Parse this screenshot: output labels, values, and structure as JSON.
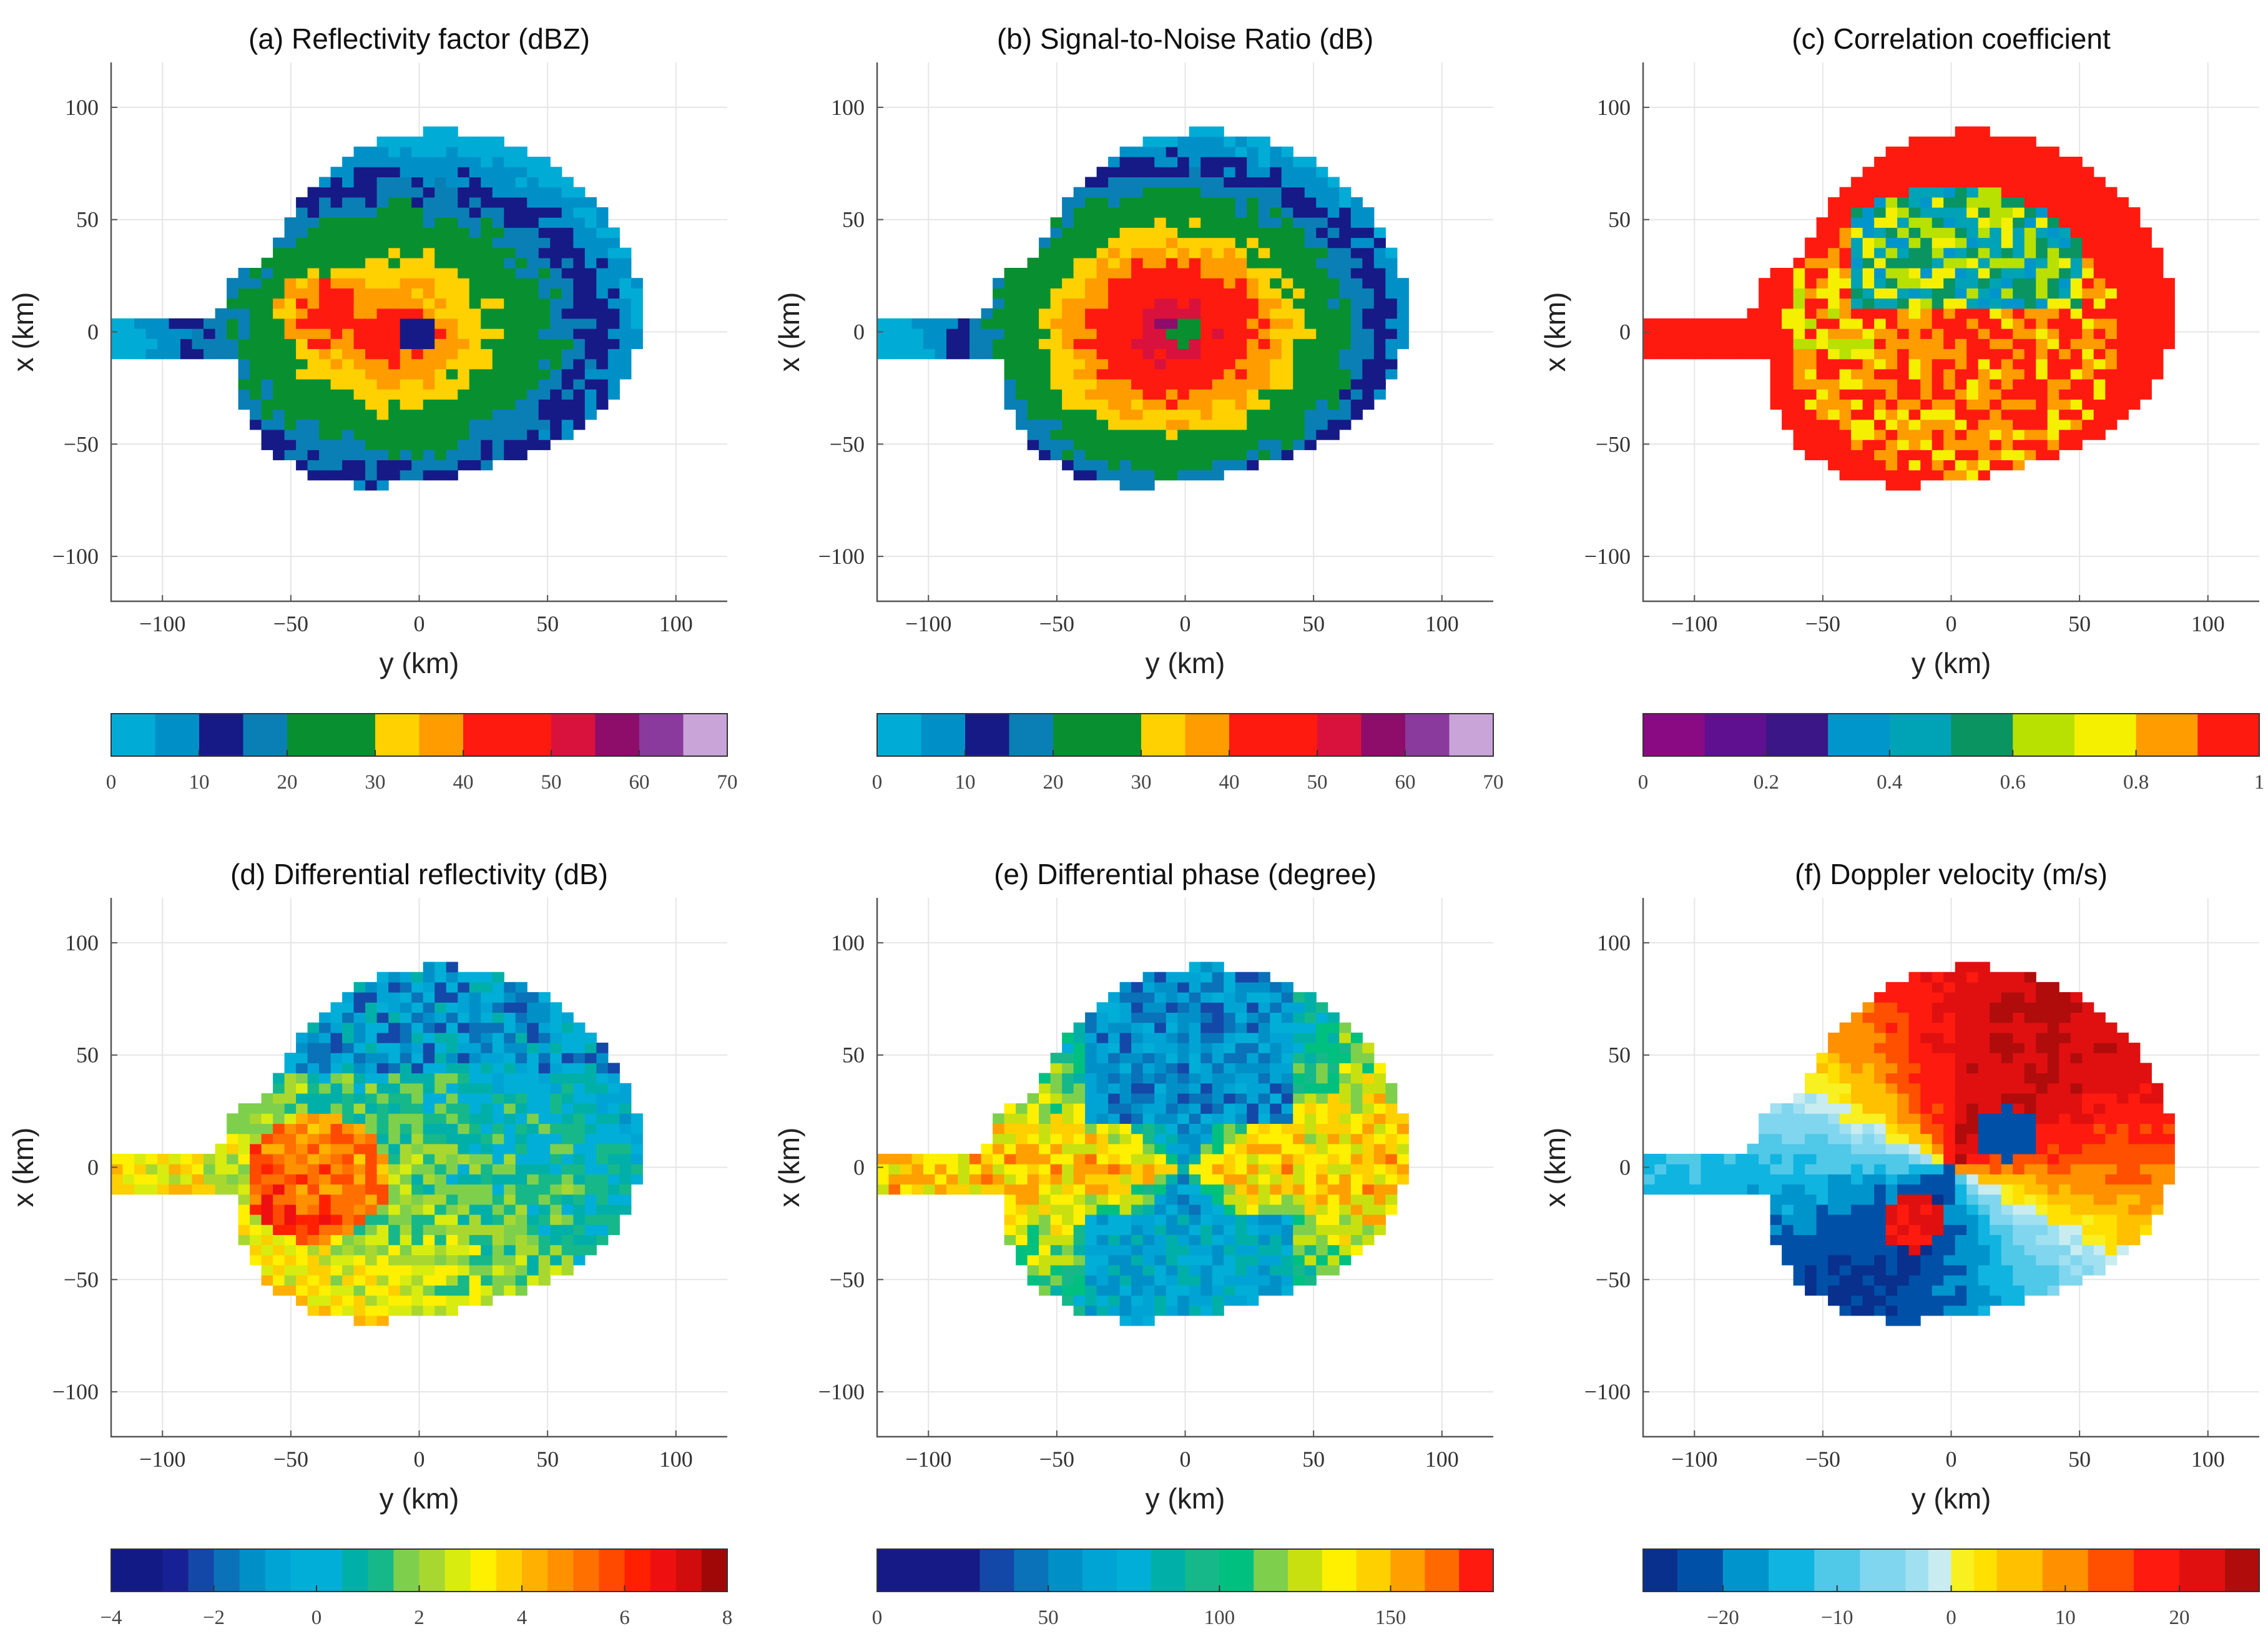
{
  "chart_data": [
    {
      "type": "heatmap",
      "panel": "a",
      "title": "(a) Reflectivity factor (dBZ)",
      "xlabel": "y (km)",
      "ylabel": "x (km)",
      "xlim": [
        -120,
        120
      ],
      "ylim": [
        -120,
        120
      ],
      "xticks": [
        -100,
        -50,
        0,
        50,
        100
      ],
      "yticks": [
        -100,
        -50,
        0,
        50,
        100
      ],
      "grid": true,
      "field": "reflectivity",
      "colorbar": {
        "min": 0,
        "max": 70,
        "ticks": [
          0,
          10,
          20,
          30,
          40,
          50,
          60,
          70
        ],
        "tick_labels": [
          "0",
          "10",
          "20",
          "30",
          "40",
          "50",
          "60",
          "70"
        ],
        "bins": [
          {
            "from": 0,
            "to": 5,
            "color": "#00acd6"
          },
          {
            "from": 5,
            "to": 10,
            "color": "#0090c8"
          },
          {
            "from": 10,
            "to": 15,
            "color": "#161a86"
          },
          {
            "from": 15,
            "to": 20,
            "color": "#0a7fb5"
          },
          {
            "from": 20,
            "to": 25,
            "color": "#089030"
          },
          {
            "from": 25,
            "to": 30,
            "color": "#089030"
          },
          {
            "from": 30,
            "to": 35,
            "color": "#ffd100"
          },
          {
            "from": 35,
            "to": 40,
            "color": "#ff9c00"
          },
          {
            "from": 40,
            "to": 45,
            "color": "#ff1a10"
          },
          {
            "from": 45,
            "to": 50,
            "color": "#ff1a10"
          },
          {
            "from": 50,
            "to": 55,
            "color": "#d8123c"
          },
          {
            "from": 55,
            "to": 60,
            "color": "#8e0c6a"
          },
          {
            "from": 60,
            "to": 65,
            "color": "#8a3a9c"
          },
          {
            "from": 65,
            "to": 70,
            "color": "#c9a4d8"
          }
        ]
      }
    },
    {
      "type": "heatmap",
      "panel": "b",
      "title": "(b) Signal-to-Noise Ratio (dB)",
      "xlabel": "y (km)",
      "ylabel": "x (km)",
      "xlim": [
        -120,
        120
      ],
      "ylim": [
        -120,
        120
      ],
      "xticks": [
        -100,
        -50,
        0,
        50,
        100
      ],
      "yticks": [
        -100,
        -50,
        0,
        50,
        100
      ],
      "grid": true,
      "field": "snr",
      "colorbar": {
        "min": 0,
        "max": 70,
        "ticks": [
          0,
          10,
          20,
          30,
          40,
          50,
          60,
          70
        ],
        "tick_labels": [
          "0",
          "10",
          "20",
          "30",
          "40",
          "50",
          "60",
          "70"
        ],
        "bins": [
          {
            "from": 0,
            "to": 5,
            "color": "#00acd6"
          },
          {
            "from": 5,
            "to": 10,
            "color": "#0090c8"
          },
          {
            "from": 10,
            "to": 15,
            "color": "#161a86"
          },
          {
            "from": 15,
            "to": 20,
            "color": "#0a7fb5"
          },
          {
            "from": 20,
            "to": 25,
            "color": "#089030"
          },
          {
            "from": 25,
            "to": 30,
            "color": "#089030"
          },
          {
            "from": 30,
            "to": 35,
            "color": "#ffd100"
          },
          {
            "from": 35,
            "to": 40,
            "color": "#ff9c00"
          },
          {
            "from": 40,
            "to": 45,
            "color": "#ff1a10"
          },
          {
            "from": 45,
            "to": 50,
            "color": "#ff1a10"
          },
          {
            "from": 50,
            "to": 55,
            "color": "#d8123c"
          },
          {
            "from": 55,
            "to": 60,
            "color": "#8e0c6a"
          },
          {
            "from": 60,
            "to": 65,
            "color": "#8a3a9c"
          },
          {
            "from": 65,
            "to": 70,
            "color": "#c9a4d8"
          }
        ]
      }
    },
    {
      "type": "heatmap",
      "panel": "c",
      "title": "(c) Correlation coefficient",
      "xlabel": "y (km)",
      "ylabel": "x (km)",
      "xlim": [
        -120,
        120
      ],
      "ylim": [
        -120,
        120
      ],
      "xticks": [
        -100,
        -50,
        0,
        50,
        100
      ],
      "yticks": [
        -100,
        -50,
        0,
        50,
        100
      ],
      "grid": true,
      "field": "correlation",
      "colorbar": {
        "min": 0,
        "max": 1,
        "ticks": [
          0,
          0.2,
          0.4,
          0.6,
          0.8,
          1
        ],
        "tick_labels": [
          "0",
          "0.2",
          "0.4",
          "0.6",
          "0.8",
          "1"
        ],
        "bins": [
          {
            "from": 0,
            "to": 0.1,
            "color": "#8a0a84"
          },
          {
            "from": 0.1,
            "to": 0.2,
            "color": "#5e1090"
          },
          {
            "from": 0.2,
            "to": 0.3,
            "color": "#3a1686"
          },
          {
            "from": 0.3,
            "to": 0.4,
            "color": "#0096cc"
          },
          {
            "from": 0.4,
            "to": 0.5,
            "color": "#00a2b6"
          },
          {
            "from": 0.5,
            "to": 0.6,
            "color": "#0a9462"
          },
          {
            "from": 0.6,
            "to": 0.7,
            "color": "#b8e000"
          },
          {
            "from": 0.7,
            "to": 0.8,
            "color": "#f4f000"
          },
          {
            "from": 0.8,
            "to": 0.9,
            "color": "#ff9c00"
          },
          {
            "from": 0.9,
            "to": 1.0,
            "color": "#ff1a10"
          }
        ]
      }
    },
    {
      "type": "heatmap",
      "panel": "d",
      "title": "(d) Differential reflectivity (dB)",
      "xlabel": "y (km)",
      "ylabel": "x (km)",
      "xlim": [
        -120,
        120
      ],
      "ylim": [
        -120,
        120
      ],
      "xticks": [
        -100,
        -50,
        0,
        50,
        100
      ],
      "yticks": [
        -100,
        -50,
        0,
        50,
        100
      ],
      "grid": true,
      "field": "differential_reflectivity",
      "colorbar": {
        "min": -4,
        "max": 8,
        "ticks": [
          -4,
          -2,
          0,
          2,
          4,
          6,
          8
        ],
        "tick_labels": [
          "−4",
          "−2",
          "0",
          "2",
          "4",
          "6",
          "8"
        ],
        "bins": [
          {
            "from": -4,
            "to": -3,
            "color": "#121a86"
          },
          {
            "from": -3,
            "to": -2.5,
            "color": "#182096"
          },
          {
            "from": -2.5,
            "to": -2,
            "color": "#1448a8"
          },
          {
            "from": -2,
            "to": -1.5,
            "color": "#0a72b8"
          },
          {
            "from": -1.5,
            "to": -1,
            "color": "#0090c8"
          },
          {
            "from": -1,
            "to": -0.5,
            "color": "#00a4d4"
          },
          {
            "from": -0.5,
            "to": 0.5,
            "color": "#00aed8"
          },
          {
            "from": 0.5,
            "to": 1,
            "color": "#00b0a8"
          },
          {
            "from": 1,
            "to": 1.5,
            "color": "#16b88a"
          },
          {
            "from": 1.5,
            "to": 2,
            "color": "#7ed04c"
          },
          {
            "from": 2,
            "to": 2.5,
            "color": "#a8d830"
          },
          {
            "from": 2.5,
            "to": 3,
            "color": "#d8ec10"
          },
          {
            "from": 3,
            "to": 3.5,
            "color": "#fff000"
          },
          {
            "from": 3.5,
            "to": 4,
            "color": "#ffd000"
          },
          {
            "from": 4,
            "to": 4.5,
            "color": "#ffb000"
          },
          {
            "from": 4.5,
            "to": 5,
            "color": "#ff9000"
          },
          {
            "from": 5,
            "to": 5.5,
            "color": "#ff7000"
          },
          {
            "from": 5.5,
            "to": 6,
            "color": "#ff4a00"
          },
          {
            "from": 6,
            "to": 6.5,
            "color": "#ff2000"
          },
          {
            "from": 6.5,
            "to": 7,
            "color": "#ee1010"
          },
          {
            "from": 7,
            "to": 7.5,
            "color": "#d00c0c"
          },
          {
            "from": 7.5,
            "to": 8,
            "color": "#a00808"
          }
        ]
      }
    },
    {
      "type": "heatmap",
      "panel": "e",
      "title": "(e) Differential phase (degree)",
      "xlabel": "y (km)",
      "ylabel": "x (km)",
      "xlim": [
        -120,
        120
      ],
      "ylim": [
        -120,
        120
      ],
      "xticks": [
        -100,
        -50,
        0,
        50,
        100
      ],
      "yticks": [
        -100,
        -50,
        0,
        50,
        100
      ],
      "grid": true,
      "field": "differential_phase",
      "colorbar": {
        "min": 0,
        "max": 180,
        "ticks": [
          0,
          50,
          100,
          150
        ],
        "tick_labels": [
          "0",
          "50",
          "100",
          "150"
        ],
        "bins": [
          {
            "from": 0,
            "to": 30,
            "color": "#161a86"
          },
          {
            "from": 30,
            "to": 40,
            "color": "#1448a8"
          },
          {
            "from": 40,
            "to": 50,
            "color": "#0a72b8"
          },
          {
            "from": 50,
            "to": 60,
            "color": "#0090c8"
          },
          {
            "from": 60,
            "to": 70,
            "color": "#00a4d4"
          },
          {
            "from": 70,
            "to": 80,
            "color": "#00aed8"
          },
          {
            "from": 80,
            "to": 90,
            "color": "#00b0a8"
          },
          {
            "from": 90,
            "to": 100,
            "color": "#16b88a"
          },
          {
            "from": 100,
            "to": 110,
            "color": "#00c080"
          },
          {
            "from": 110,
            "to": 120,
            "color": "#7ed04c"
          },
          {
            "from": 120,
            "to": 130,
            "color": "#c8e010"
          },
          {
            "from": 130,
            "to": 140,
            "color": "#fff000"
          },
          {
            "from": 140,
            "to": 150,
            "color": "#ffd000"
          },
          {
            "from": 150,
            "to": 160,
            "color": "#ffa000"
          },
          {
            "from": 160,
            "to": 170,
            "color": "#ff6a00"
          },
          {
            "from": 170,
            "to": 180,
            "color": "#ff1a10"
          }
        ]
      }
    },
    {
      "type": "heatmap",
      "panel": "f",
      "title": "(f) Doppler velocity (m/s)",
      "xlabel": "y (km)",
      "ylabel": "x (km)",
      "xlim": [
        -120,
        120
      ],
      "ylim": [
        -120,
        120
      ],
      "xticks": [
        -100,
        -50,
        0,
        50,
        100
      ],
      "yticks": [
        -100,
        -50,
        0,
        50,
        100
      ],
      "grid": true,
      "field": "doppler_velocity",
      "colorbar": {
        "min": -27,
        "max": 27,
        "ticks": [
          -20,
          -10,
          0,
          10,
          20
        ],
        "tick_labels": [
          "−20",
          "−10",
          "0",
          "10",
          "20"
        ],
        "bins": [
          {
            "from": -27,
            "to": -24,
            "color": "#08308c"
          },
          {
            "from": -24,
            "to": -20,
            "color": "#0050a8"
          },
          {
            "from": -20,
            "to": -16,
            "color": "#0094cc"
          },
          {
            "from": -16,
            "to": -12,
            "color": "#10b4e0"
          },
          {
            "from": -12,
            "to": -8,
            "color": "#50c8e8"
          },
          {
            "from": -8,
            "to": -4,
            "color": "#80d6ee"
          },
          {
            "from": -4,
            "to": -2,
            "color": "#a0e0f0"
          },
          {
            "from": -2,
            "to": 0,
            "color": "#c8ecf0"
          },
          {
            "from": 0,
            "to": 2,
            "color": "#f8f020"
          },
          {
            "from": 2,
            "to": 4,
            "color": "#ffe000"
          },
          {
            "from": 4,
            "to": 8,
            "color": "#ffc000"
          },
          {
            "from": 8,
            "to": 12,
            "color": "#ff9000"
          },
          {
            "from": 12,
            "to": 16,
            "color": "#ff5000"
          },
          {
            "from": 16,
            "to": 20,
            "color": "#ff1a10"
          },
          {
            "from": 20,
            "to": 24,
            "color": "#e01010"
          },
          {
            "from": 24,
            "to": 27,
            "color": "#b00c0c"
          }
        ]
      }
    }
  ]
}
